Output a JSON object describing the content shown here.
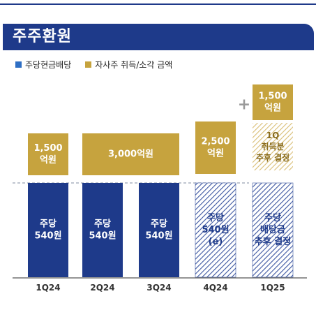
{
  "header": {
    "title": "주주환원"
  },
  "legend": [
    {
      "label": "주당현금배당",
      "color": "#1e3a8a"
    },
    {
      "label": "자사주 취득/소각 금액",
      "color": "#c6a33e"
    }
  ],
  "plus_sign": "+",
  "chart_data": {
    "type": "bar",
    "stacked": true,
    "categories": [
      "1Q24",
      "2Q24",
      "3Q24",
      "4Q24",
      "1Q25"
    ],
    "series": [
      {
        "name": "주당현금배당",
        "color": "#1e3a8a",
        "hatched": [
          false,
          false,
          false,
          true,
          true
        ],
        "labels": [
          [
            "주당",
            "540원"
          ],
          [
            "주당",
            "540원"
          ],
          [
            "주당",
            "540원"
          ],
          [
            "주당",
            "540원",
            "(e)"
          ],
          [
            "주당",
            "배당금",
            "추후 결정"
          ]
        ]
      },
      {
        "name": "자사주 취득/소각 금액",
        "color": "#c6a33e",
        "values_krw_100m": [
          1500,
          3000,
          3000,
          2500,
          1500
        ],
        "labels": [
          [
            "1,500",
            "억원"
          ],
          [
            "3,000억원"
          ],
          [],
          [
            "2,500",
            "억원"
          ],
          [
            "1,500",
            "억원"
          ]
        ],
        "extra_hatched": {
          "category": "1Q25",
          "label": [
            "1Q",
            "취득분",
            "추후 결정"
          ]
        }
      }
    ],
    "notes": "2Q24 and 3Q24 share a single 3,000억원 buyback block"
  }
}
